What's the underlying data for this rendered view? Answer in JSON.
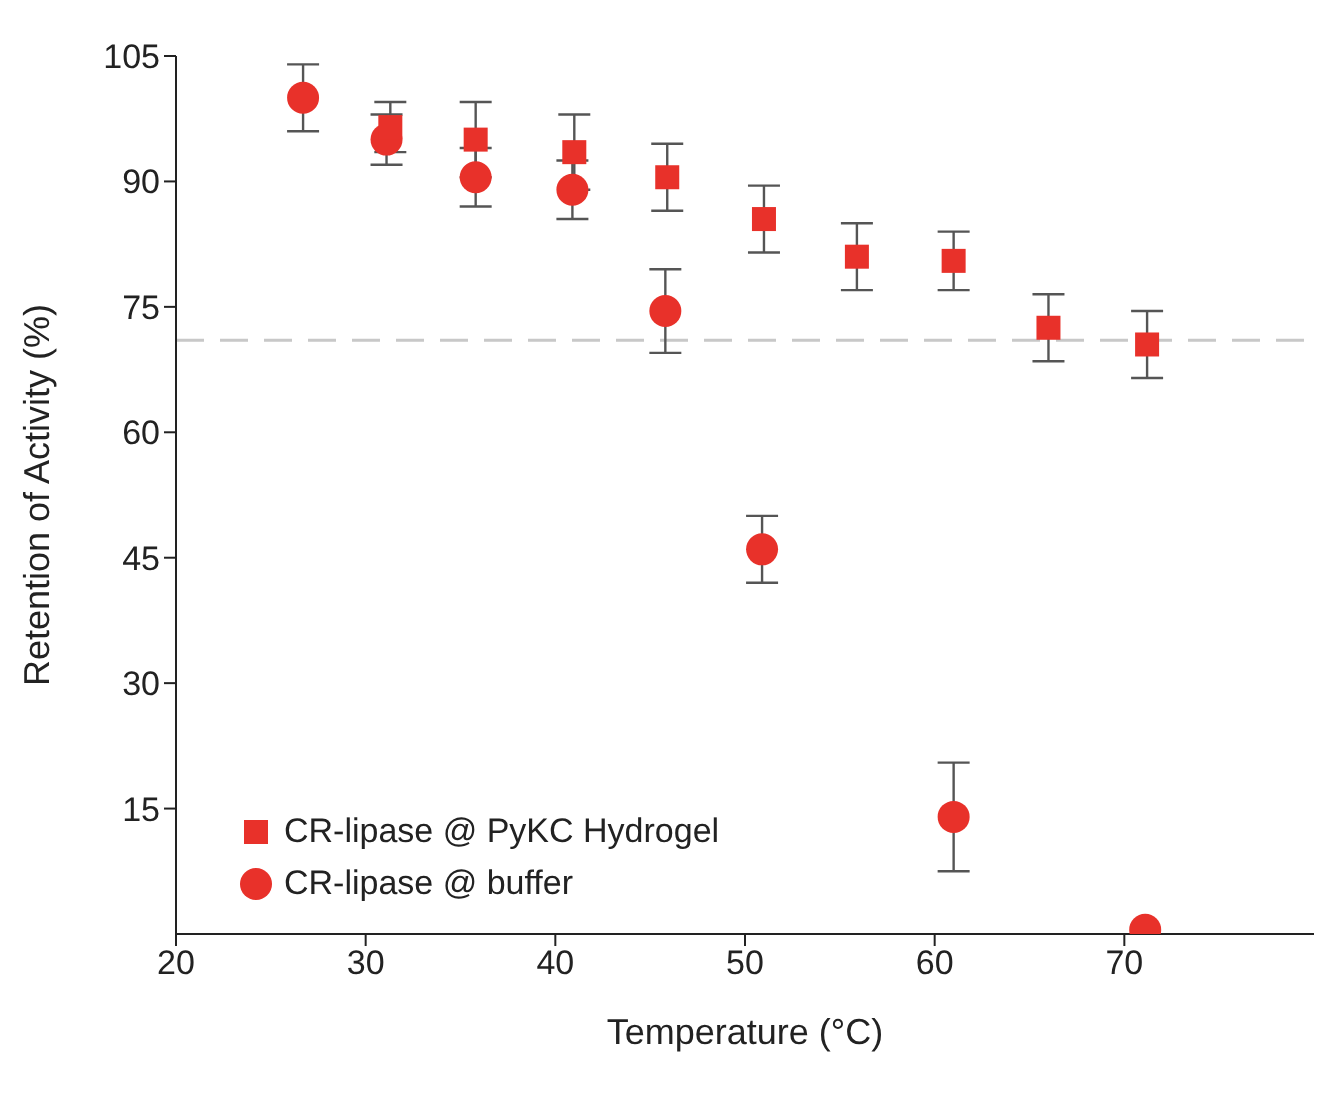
{
  "chart_data": {
    "type": "scatter",
    "xlabel": "Temperature (°C)",
    "ylabel": "Retention of Activity (%)",
    "xlim": [
      20,
      80
    ],
    "xticks": [
      20,
      30,
      40,
      50,
      60,
      70
    ],
    "ylim": [
      0,
      105
    ],
    "yticks": [
      15,
      30,
      45,
      60,
      75,
      90,
      105
    ],
    "grid": false,
    "legend": "bottom left",
    "ref_lines": [
      {
        "axis": "y",
        "value": 71,
        "color": "#c8c8c8",
        "line_style": "dashed"
      }
    ],
    "series": [
      {
        "name": "CR-lipase @ PyKC Hydrogel",
        "color": "#e8312a",
        "marker": "square",
        "x": [
          31.3,
          35.8,
          41,
          45.9,
          51,
          55.9,
          61,
          66,
          71.2
        ],
        "values": [
          96.5,
          95,
          93.5,
          90.5,
          85.5,
          81,
          80.5,
          72.5,
          70.5
        ],
        "errors": [
          3,
          4.5,
          4.5,
          4,
          4,
          4,
          3.5,
          4,
          4
        ]
      },
      {
        "name": "CR-lipase @ buffer",
        "color": "#e8312a",
        "marker": "circle",
        "x": [
          26.7,
          31.1,
          35.8,
          40.9,
          45.8,
          50.9,
          61,
          71.1
        ],
        "values": [
          100,
          95,
          90.5,
          89,
          74.5,
          46,
          14,
          0.5
        ],
        "errors": [
          4,
          3,
          3.5,
          3.5,
          5,
          4,
          6.5,
          null
        ]
      }
    ]
  }
}
